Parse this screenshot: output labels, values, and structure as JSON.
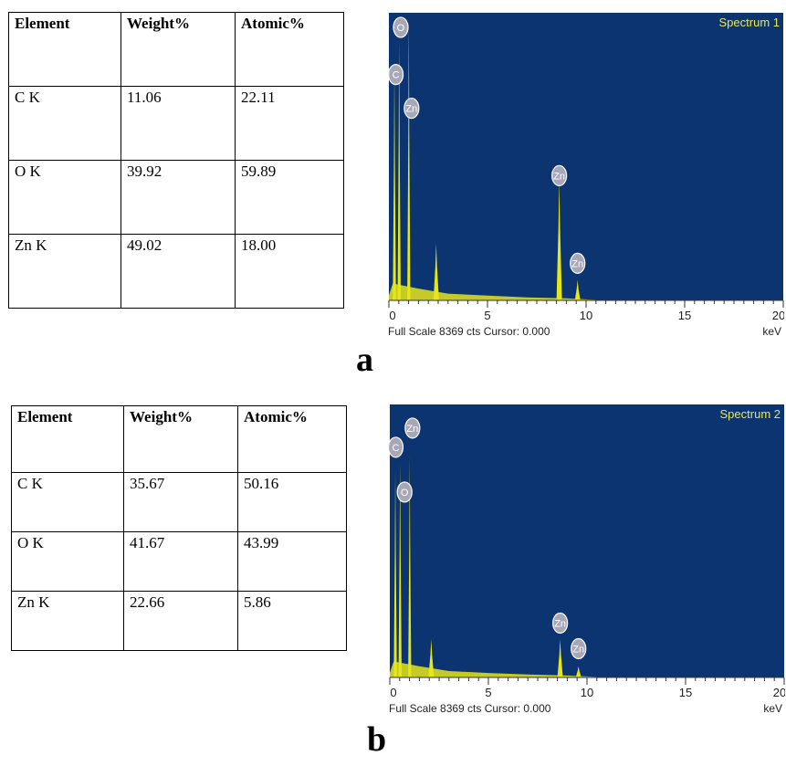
{
  "figure": {
    "label_a": "a",
    "label_b": "b"
  },
  "tables": [
    {
      "headers": [
        "Element",
        "Weight%",
        "Atomic%"
      ],
      "rows": [
        [
          "C K",
          "11.06",
          "22.11"
        ],
        [
          "O K",
          "39.92",
          "59.89"
        ],
        [
          "Zn K",
          "49.02",
          "18.00"
        ]
      ]
    },
    {
      "headers": [
        "Element",
        "Weight%",
        "Atomic%"
      ],
      "rows": [
        [
          "C K",
          "35.67",
          "50.16"
        ],
        [
          "O K",
          "41.67",
          "43.99"
        ],
        [
          "Zn K",
          "22.66",
          "5.86"
        ]
      ]
    }
  ],
  "colors": {
    "plot_bg": "#0b3470",
    "peak": "#e6e619",
    "label_text": "#e8e85a",
    "badge_fill": "#a7a7b8"
  },
  "chart_data": [
    {
      "type": "area",
      "title": "Spectrum 1",
      "xlabel": "keV",
      "footer": "Full Scale 8369 cts Cursor: 0.000",
      "xlim": [
        0,
        20
      ],
      "ylim": [
        0,
        8369
      ],
      "x_ticks": [
        0,
        5,
        10,
        15,
        20
      ],
      "peaks": [
        {
          "element": "C",
          "x": 0.28,
          "y": 6900
        },
        {
          "element": "O",
          "x": 0.52,
          "y": 7700
        },
        {
          "element": "Zn",
          "x": 1.01,
          "y": 8369
        },
        {
          "element": "",
          "x": 2.4,
          "y": 1700
        },
        {
          "element": "Zn",
          "x": 8.64,
          "y": 3600
        },
        {
          "element": "Zn",
          "x": 9.57,
          "y": 600
        }
      ],
      "peak_labels": [
        {
          "text": "O",
          "x": 0.6,
          "y": 8100
        },
        {
          "text": "C",
          "x": 0.35,
          "y": 6700
        },
        {
          "text": "Zn",
          "x": 1.15,
          "y": 5700
        },
        {
          "text": "Zn",
          "x": 8.64,
          "y": 3700
        },
        {
          "text": "Zn",
          "x": 9.57,
          "y": 1100
        }
      ]
    },
    {
      "type": "area",
      "title": "Spectrum 2",
      "xlabel": "keV",
      "footer": "Full Scale 8369 cts Cursor: 0.000",
      "xlim": [
        0,
        20
      ],
      "ylim": [
        0,
        8369
      ],
      "x_ticks": [
        0,
        5,
        10,
        15,
        20
      ],
      "peaks": [
        {
          "element": "C",
          "x": 0.28,
          "y": 6500
        },
        {
          "element": "O",
          "x": 0.52,
          "y": 6700
        },
        {
          "element": "Zn",
          "x": 1.01,
          "y": 6900
        },
        {
          "element": "",
          "x": 2.1,
          "y": 1200
        },
        {
          "element": "Zn",
          "x": 8.64,
          "y": 1200
        },
        {
          "element": "Zn",
          "x": 9.57,
          "y": 350
        }
      ],
      "peak_labels": [
        {
          "text": "C",
          "x": 0.3,
          "y": 7200
        },
        {
          "text": "Zn",
          "x": 1.15,
          "y": 7800
        },
        {
          "text": "O",
          "x": 0.75,
          "y": 5800
        },
        {
          "text": "Zn",
          "x": 8.64,
          "y": 1700
        },
        {
          "text": "Zn",
          "x": 9.57,
          "y": 900
        }
      ]
    }
  ]
}
